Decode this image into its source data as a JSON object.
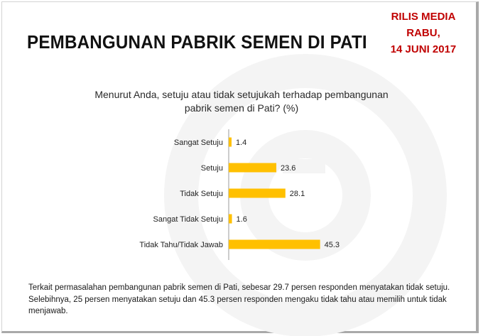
{
  "header": {
    "title": "PEMBANGUNAN PABRIK SEMEN DI PATI",
    "release_lines": [
      "RILIS MEDIA",
      "RABU,",
      "14 JUNI 2017"
    ]
  },
  "question": {
    "lines": [
      "Menurut Anda, setuju atau tidak setujukah terhadap pembangunan",
      "pabrik semen di Pati? (%)"
    ]
  },
  "chart_data": {
    "type": "bar",
    "orientation": "horizontal",
    "title": "Menurut Anda, setuju atau tidak setujukah terhadap pembangunan pabrik semen di Pati? (%)",
    "categories": [
      "Sangat Setuju",
      "Setuju",
      "Tidak Setuju",
      "Sangat Tidak Setuju",
      "Tidak Tahu/Tidak Jawab"
    ],
    "values": [
      1.4,
      23.6,
      28.1,
      1.6,
      45.3
    ],
    "data_labels": [
      "1.4",
      "23.6",
      "28.1",
      "1.6",
      "45.3"
    ],
    "xlim": [
      0,
      50
    ],
    "grid": false,
    "legend": "none",
    "bar_color": "#ffc000"
  },
  "footnote": {
    "text": "Terkait permasalahan pembangunan pabrik semen di Pati, sebesar 29.7 persen responden menyatakan tidak setuju. Selebihnya, 25 persen menyatakan setuju dan 45.3 persen responden mengaku tidak tahu atau memilih untuk tidak menjawab."
  },
  "colors": {
    "title": "#111111",
    "release": "#c00000",
    "watermark": "#f3f3f3"
  }
}
